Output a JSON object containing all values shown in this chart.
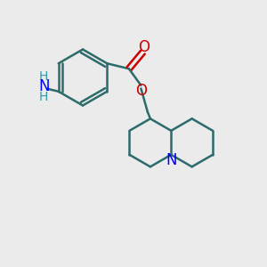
{
  "background_color": "#ebebeb",
  "bond_color": "#2d6b6b",
  "nitrogen_color": "#0000ff",
  "oxygen_color": "#cc0000",
  "nh2_color": "#3399aa",
  "line_width": 1.8,
  "font_size_atom": 10,
  "figsize": [
    3.0,
    3.0
  ],
  "dpi": 100,
  "xlim": [
    0,
    10
  ],
  "ylim": [
    0,
    10
  ]
}
